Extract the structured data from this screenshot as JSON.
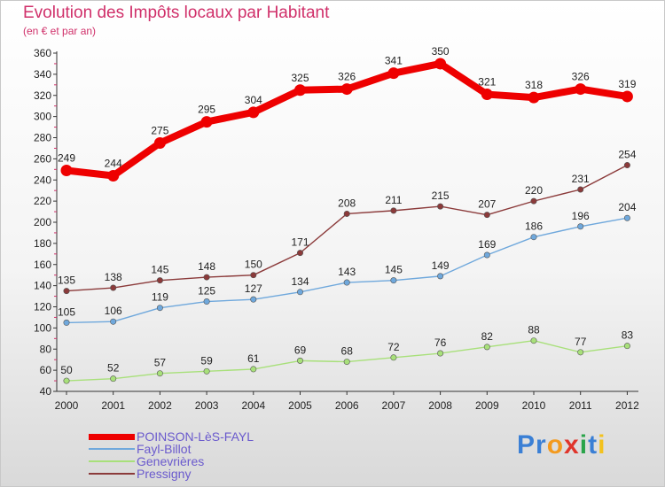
{
  "title": "Evolution des Impôts locaux par Habitant",
  "subtitle": "(en € et par an)",
  "brand": {
    "text": "Proxiti",
    "letters": [
      {
        "ch": "P",
        "color": "#3a7fd5"
      },
      {
        "ch": "r",
        "color": "#3a7fd5"
      },
      {
        "ch": "o",
        "color": "#f39a1e"
      },
      {
        "ch": "x",
        "color": "#e0352b"
      },
      {
        "ch": "i",
        "color": "#2aa44a"
      },
      {
        "ch": "t",
        "color": "#3a7fd5"
      },
      {
        "ch": "i",
        "color": "#f3c21e"
      }
    ]
  },
  "chart_data": {
    "type": "line",
    "title": "Evolution des Impôts locaux par Habitant",
    "subtitle": "(en € et par an)",
    "x": [
      "2000",
      "2001",
      "2002",
      "2003",
      "2004",
      "2005",
      "2006",
      "2007",
      "2008",
      "2009",
      "2010",
      "2011",
      "2012"
    ],
    "ylim": [
      40,
      360
    ],
    "yticks": [
      40,
      60,
      80,
      100,
      120,
      140,
      160,
      180,
      200,
      220,
      240,
      260,
      280,
      300,
      320,
      340,
      360
    ],
    "grid": false,
    "legend_position": "bottom-left",
    "series": [
      {
        "name": "POINSON-LèS-FAYL",
        "color": "#ee0000",
        "values": [
          249,
          244,
          275,
          295,
          304,
          325,
          326,
          341,
          350,
          321,
          318,
          326,
          319
        ]
      },
      {
        "name": "Fayl-Billot",
        "color": "#6fa8dc",
        "values": [
          105,
          106,
          119,
          125,
          127,
          134,
          143,
          145,
          149,
          169,
          186,
          196,
          204
        ]
      },
      {
        "name": "Genevrières",
        "color": "#a8e07a",
        "values": [
          50,
          52,
          57,
          59,
          61,
          69,
          68,
          72,
          76,
          82,
          88,
          77,
          83
        ]
      },
      {
        "name": "Pressigny",
        "color": "#8b3a3a",
        "values": [
          135,
          138,
          145,
          148,
          150,
          171,
          208,
          211,
          215,
          207,
          220,
          231,
          254
        ]
      }
    ]
  }
}
